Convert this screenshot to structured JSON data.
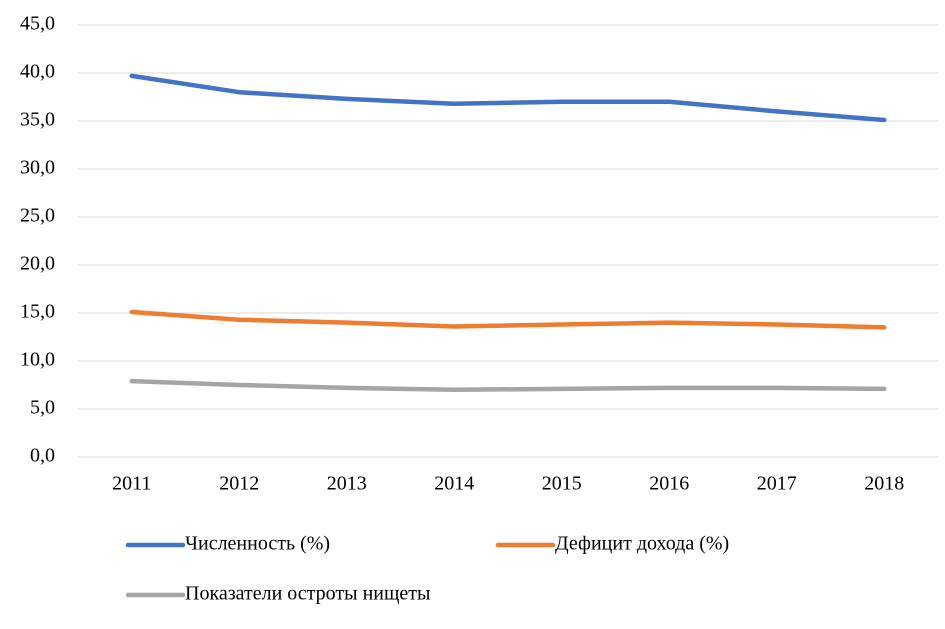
{
  "chart_data": {
    "type": "line",
    "categories": [
      "2011",
      "2012",
      "2013",
      "2014",
      "2015",
      "2016",
      "2017",
      "2018"
    ],
    "series": [
      {
        "name": "Численность (%)",
        "color": "#4472c4",
        "values": [
          39.7,
          38.0,
          37.3,
          36.8,
          37.0,
          37.0,
          36.0,
          35.1
        ]
      },
      {
        "name": "Дефицит дохода (%)",
        "color": "#ed7d31",
        "values": [
          15.1,
          14.3,
          14.0,
          13.6,
          13.8,
          14.0,
          13.8,
          13.5
        ]
      },
      {
        "name": "Показатели остроты нищеты",
        "color": "#a5a5a5",
        "values": [
          7.9,
          7.5,
          7.2,
          7.0,
          7.1,
          7.2,
          7.2,
          7.1
        ]
      }
    ],
    "ylim": [
      0,
      45
    ],
    "yticks": [
      {
        "value": 0,
        "label": "0,0"
      },
      {
        "value": 5,
        "label": "5,0"
      },
      {
        "value": 10,
        "label": "10,0"
      },
      {
        "value": 15,
        "label": "15,0"
      },
      {
        "value": 20,
        "label": "20,0"
      },
      {
        "value": 25,
        "label": "25,0"
      },
      {
        "value": 30,
        "label": "30,0"
      },
      {
        "value": 35,
        "label": "35,0"
      },
      {
        "value": 40,
        "label": "40,0"
      },
      {
        "value": 45,
        "label": "45,0"
      }
    ],
    "grid": true
  }
}
